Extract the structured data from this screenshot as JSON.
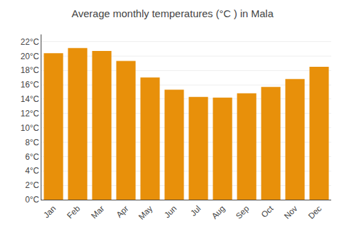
{
  "chart_data": {
    "type": "bar",
    "title": "Average monthly temperatures (°C ) in Mala",
    "categories": [
      "Jan",
      "Feb",
      "Mar",
      "Apr",
      "May",
      "Jun",
      "Jul",
      "Aug",
      "Sep",
      "Oct",
      "Nov",
      "Dec"
    ],
    "values": [
      20.4,
      21.1,
      20.7,
      19.3,
      17.0,
      15.3,
      14.3,
      14.2,
      14.8,
      15.7,
      16.8,
      18.5
    ],
    "color": "#E8900A",
    "ylim": [
      0,
      23
    ],
    "yticks": [
      {
        "value": 0,
        "label": "0°C"
      },
      {
        "value": 2,
        "label": "2°C"
      },
      {
        "value": 4,
        "label": "4°C"
      },
      {
        "value": 6,
        "label": "6°C"
      },
      {
        "value": 8,
        "label": "8°C"
      },
      {
        "value": 10,
        "label": "10°C"
      },
      {
        "value": 12,
        "label": "12°C"
      },
      {
        "value": 14,
        "label": "14°C"
      },
      {
        "value": 16,
        "label": "16°C"
      },
      {
        "value": 18,
        "label": "18°C"
      },
      {
        "value": 20,
        "label": "20°C"
      },
      {
        "value": 22,
        "label": "22°C"
      }
    ],
    "grid": true
  }
}
